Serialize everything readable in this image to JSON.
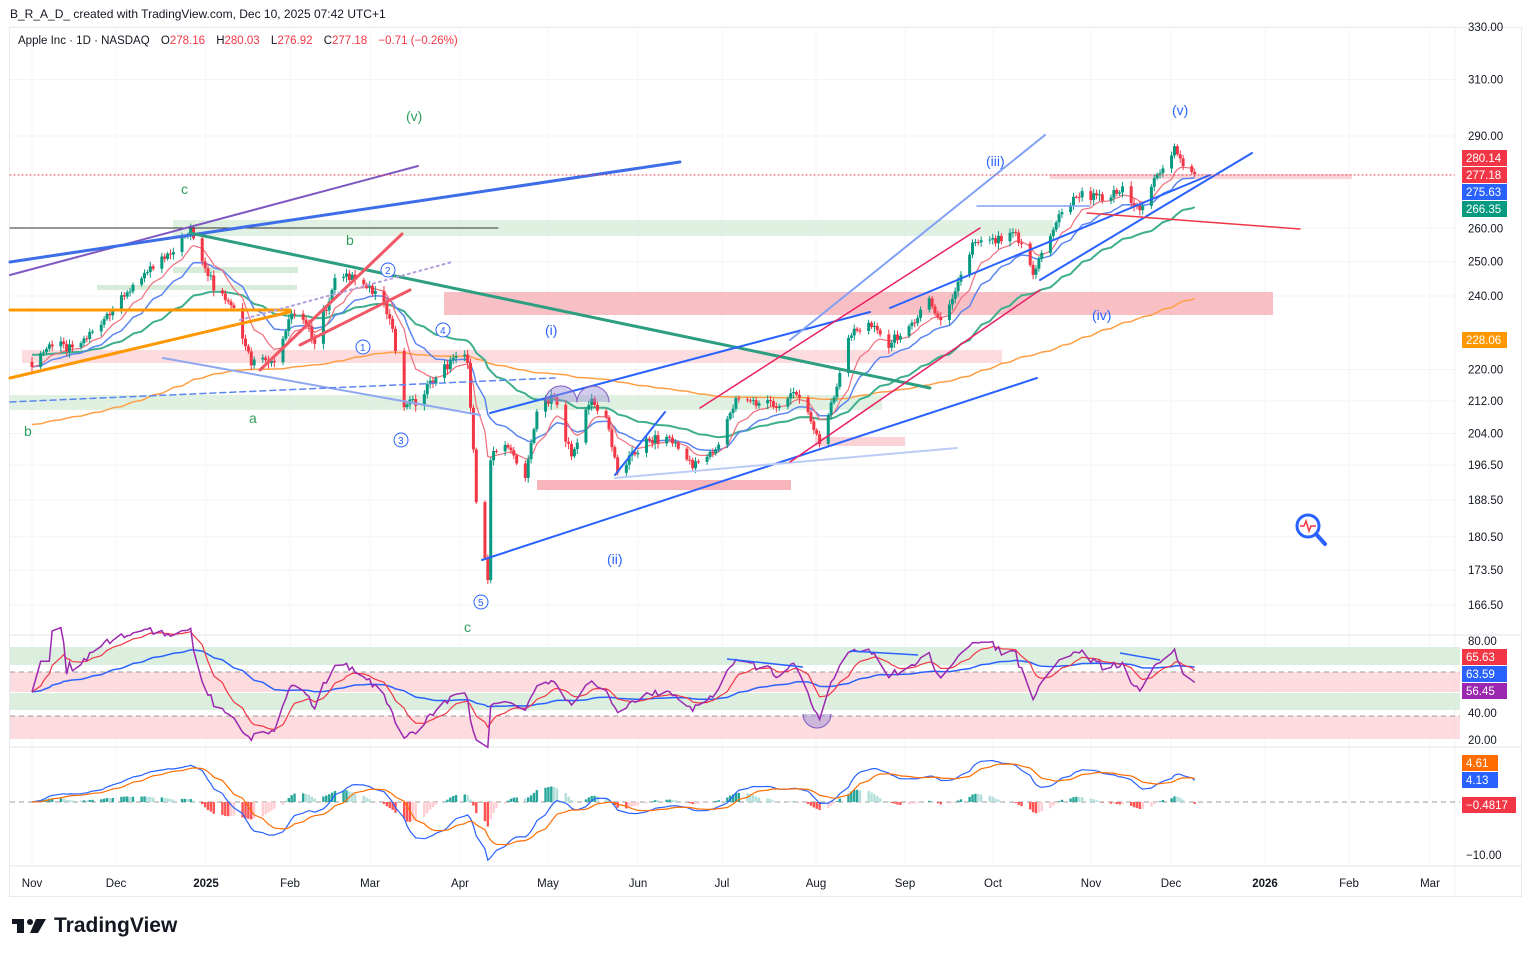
{
  "caption": "B_R_A_D_ created with TradingView.com, Dec 10, 2025 07:42 UTC+1",
  "legend": {
    "symbol": "Apple Inc · 1D · NASDAQ",
    "o_label": "O",
    "o": "278.16",
    "h_label": "H",
    "h": "280.03",
    "l_label": "L",
    "l": "276.92",
    "c_label": "C",
    "c": "277.18",
    "change": "−0.71 (−0.26%)"
  },
  "price_axis": [
    "330.00",
    "310.00",
    "290.00",
    "260.00",
    "250.00",
    "240.00",
    "220.00",
    "212.00",
    "204.00",
    "196.50",
    "188.50",
    "180.50",
    "173.50",
    "166.50"
  ],
  "price_badges": [
    {
      "text": "280.14",
      "color": "#f23645"
    },
    {
      "text": "277.18",
      "color": "#f23645"
    },
    {
      "text": "275.63",
      "color": "#2962ff"
    },
    {
      "text": "266.35",
      "color": "#089981"
    },
    {
      "text": "228.06",
      "color": "#ff9800"
    }
  ],
  "rsi_axis": [
    "80.00",
    "40.00",
    "20.00"
  ],
  "rsi_badges": [
    {
      "text": "65.63",
      "color": "#f23645"
    },
    {
      "text": "63.59",
      "color": "#2962ff"
    },
    {
      "text": "56.45",
      "color": "#9c27b0"
    }
  ],
  "macd_axis": [
    "−10.00"
  ],
  "macd_badges": [
    {
      "text": "4.61",
      "color": "#ff6d00"
    },
    {
      "text": "4.13",
      "color": "#2962ff"
    },
    {
      "text": "−0.4817",
      "color": "#f23645"
    }
  ],
  "time_axis": [
    "Nov",
    "Dec",
    "2025",
    "Feb",
    "Mar",
    "Apr",
    "May",
    "Jun",
    "Jul",
    "Aug",
    "Sep",
    "Oct",
    "Nov",
    "Dec",
    "2026",
    "Feb",
    "Mar"
  ],
  "annotations": {
    "green": [
      "(v)",
      "c",
      "b",
      "b",
      "a",
      "c"
    ],
    "blue": [
      "(i)",
      "(ii)",
      "(iii)",
      "(iv)",
      "(v)"
    ],
    "circled": [
      "1",
      "2",
      "3",
      "4",
      "5"
    ]
  },
  "footer": {
    "brand": "TradingView"
  },
  "colors": {
    "up": "#089981",
    "down": "#f23645",
    "ema10": "#f06d7a",
    "ema20": "#5b86f0",
    "ema50": "#3fae8c",
    "ema200": "#ff9f45"
  },
  "chart_data": {
    "type": "candlestick",
    "title": "Apple Inc · 1D · NASDAQ",
    "ylim": [
      166.5,
      330
    ],
    "yscale": "log",
    "path": [
      [
        "2024-11-01",
        222
      ],
      [
        "2024-11-08",
        227
      ],
      [
        "2024-11-15",
        225
      ],
      [
        "2024-11-22",
        230
      ],
      [
        "2024-11-29",
        237
      ],
      [
        "2024-12-06",
        243
      ],
      [
        "2024-12-13",
        248
      ],
      [
        "2024-12-20",
        254
      ],
      [
        "2024-12-26",
        259
      ],
      [
        "2025-01-03",
        243
      ],
      [
        "2025-01-10",
        237
      ],
      [
        "2025-01-16",
        222
      ],
      [
        "2025-01-24",
        223
      ],
      [
        "2025-01-31",
        236
      ],
      [
        "2025-02-07",
        228
      ],
      [
        "2025-02-14",
        244
      ],
      [
        "2025-02-21",
        246
      ],
      [
        "2025-02-28",
        240
      ],
      [
        "2025-03-05",
        235
      ],
      [
        "2025-03-10",
        211
      ],
      [
        "2025-03-14",
        212
      ],
      [
        "2025-03-21",
        218
      ],
      [
        "2025-03-26",
        222
      ],
      [
        "2025-04-01",
        223
      ],
      [
        "2025-04-04",
        188
      ],
      [
        "2025-04-08",
        172
      ],
      [
        "2025-04-09",
        198
      ],
      [
        "2025-04-14",
        202
      ],
      [
        "2025-04-21",
        193
      ],
      [
        "2025-04-25",
        209
      ],
      [
        "2025-05-01",
        213
      ],
      [
        "2025-05-07",
        198
      ],
      [
        "2025-05-13",
        212
      ],
      [
        "2025-05-19",
        208
      ],
      [
        "2025-05-23",
        195
      ],
      [
        "2025-06-02",
        202
      ],
      [
        "2025-06-10",
        203
      ],
      [
        "2025-06-18",
        196
      ],
      [
        "2025-06-27",
        201
      ],
      [
        "2025-07-03",
        213
      ],
      [
        "2025-07-11",
        211
      ],
      [
        "2025-07-18",
        211
      ],
      [
        "2025-07-25",
        214
      ],
      [
        "2025-08-01",
        202
      ],
      [
        "2025-08-06",
        213
      ],
      [
        "2025-08-11",
        229
      ],
      [
        "2025-08-18",
        232
      ],
      [
        "2025-08-25",
        227
      ],
      [
        "2025-09-02",
        232
      ],
      [
        "2025-09-08",
        239
      ],
      [
        "2025-09-12",
        232
      ],
      [
        "2025-09-16",
        238
      ],
      [
        "2025-09-23",
        255
      ],
      [
        "2025-10-01",
        256
      ],
      [
        "2025-10-08",
        258
      ],
      [
        "2025-10-14",
        247
      ],
      [
        "2025-10-17",
        252
      ],
      [
        "2025-10-22",
        262
      ],
      [
        "2025-10-30",
        271
      ],
      [
        "2025-11-07",
        269
      ],
      [
        "2025-11-14",
        272
      ],
      [
        "2025-11-21",
        266
      ],
      [
        "2025-11-26",
        277
      ],
      [
        "2025-12-02",
        286
      ],
      [
        "2025-12-05",
        279
      ],
      [
        "2025-12-09",
        277.18
      ]
    ],
    "indicators": [
      "EMA 10",
      "EMA 20",
      "EMA 50",
      "EMA 200",
      "RSI",
      "MACD"
    ]
  }
}
